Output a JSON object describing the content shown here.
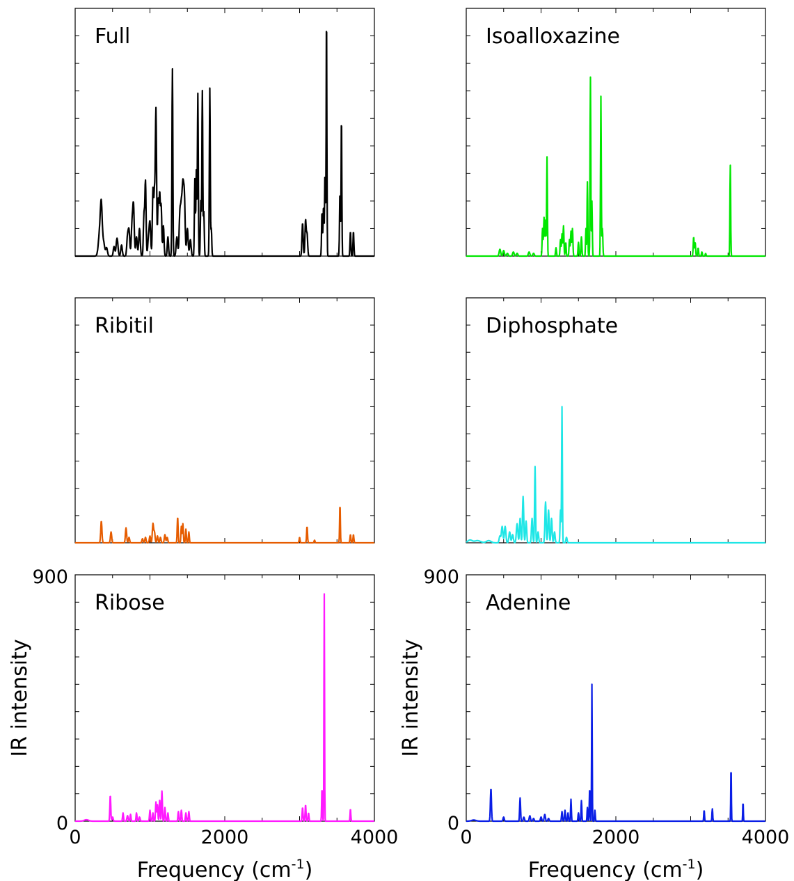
{
  "chart_data": [
    {
      "type": "line",
      "label": "Full",
      "color": "#000000",
      "xlim": [
        0,
        4000
      ],
      "ylim": [
        0,
        900
      ],
      "peaks": [
        [
          330,
          18,
          90
        ],
        [
          350,
          12,
          150
        ],
        [
          380,
          14,
          50
        ],
        [
          420,
          12,
          30
        ],
        [
          520,
          10,
          35
        ],
        [
          560,
          12,
          65
        ],
        [
          620,
          10,
          40
        ],
        [
          700,
          10,
          70
        ],
        [
          720,
          10,
          90
        ],
        [
          760,
          10,
          110
        ],
        [
          780,
          10,
          180
        ],
        [
          820,
          10,
          70
        ],
        [
          860,
          10,
          100
        ],
        [
          920,
          8,
          150
        ],
        [
          940,
          8,
          270
        ],
        [
          980,
          10,
          60
        ],
        [
          1000,
          10,
          120
        ],
        [
          1040,
          8,
          240
        ],
        [
          1060,
          8,
          220
        ],
        [
          1080,
          8,
          530
        ],
        [
          1110,
          8,
          200
        ],
        [
          1130,
          8,
          220
        ],
        [
          1150,
          8,
          180
        ],
        [
          1180,
          8,
          110
        ],
        [
          1240,
          8,
          70
        ],
        [
          1300,
          6,
          680
        ],
        [
          1360,
          10,
          70
        ],
        [
          1400,
          10,
          150
        ],
        [
          1420,
          10,
          160
        ],
        [
          1440,
          10,
          230
        ],
        [
          1460,
          10,
          210
        ],
        [
          1500,
          10,
          100
        ],
        [
          1540,
          10,
          60
        ],
        [
          1600,
          6,
          280
        ],
        [
          1620,
          6,
          310
        ],
        [
          1640,
          6,
          590
        ],
        [
          1680,
          6,
          200
        ],
        [
          1700,
          6,
          600
        ],
        [
          1720,
          6,
          160
        ],
        [
          1800,
          6,
          610
        ],
        [
          1820,
          6,
          100
        ],
        [
          3040,
          8,
          120
        ],
        [
          3080,
          8,
          130
        ],
        [
          3100,
          8,
          80
        ],
        [
          3300,
          6,
          160
        ],
        [
          3320,
          6,
          180
        ],
        [
          3340,
          6,
          300
        ],
        [
          3360,
          5,
          880
        ],
        [
          3540,
          6,
          230
        ],
        [
          3560,
          5,
          510
        ],
        [
          3680,
          6,
          90
        ],
        [
          3720,
          6,
          90
        ]
      ]
    },
    {
      "type": "line",
      "label": "Isoalloxazine",
      "color": "#00e600",
      "xlim": [
        0,
        4000
      ],
      "ylim": [
        0,
        900
      ],
      "peaks": [
        [
          450,
          10,
          25
        ],
        [
          500,
          10,
          20
        ],
        [
          550,
          10,
          10
        ],
        [
          630,
          10,
          15
        ],
        [
          680,
          10,
          10
        ],
        [
          840,
          10,
          15
        ],
        [
          900,
          10,
          10
        ],
        [
          1020,
          6,
          100
        ],
        [
          1040,
          6,
          140
        ],
        [
          1060,
          6,
          130
        ],
        [
          1080,
          5,
          360
        ],
        [
          1200,
          6,
          30
        ],
        [
          1260,
          6,
          60
        ],
        [
          1280,
          6,
          80
        ],
        [
          1300,
          6,
          110
        ],
        [
          1330,
          6,
          50
        ],
        [
          1380,
          6,
          60
        ],
        [
          1400,
          6,
          90
        ],
        [
          1420,
          6,
          100
        ],
        [
          1500,
          6,
          50
        ],
        [
          1540,
          6,
          70
        ],
        [
          1600,
          5,
          100
        ],
        [
          1620,
          5,
          270
        ],
        [
          1660,
          5,
          650
        ],
        [
          1680,
          5,
          200
        ],
        [
          1800,
          5,
          580
        ],
        [
          1820,
          6,
          100
        ],
        [
          3040,
          6,
          70
        ],
        [
          3060,
          6,
          50
        ],
        [
          3100,
          6,
          30
        ],
        [
          3150,
          6,
          15
        ],
        [
          3200,
          6,
          10
        ],
        [
          3530,
          5,
          330
        ]
      ]
    },
    {
      "type": "line",
      "label": "Ribitil",
      "color": "#e65c00",
      "xlim": [
        0,
        4000
      ],
      "ylim": [
        0,
        900
      ],
      "peaks": [
        [
          350,
          8,
          80
        ],
        [
          480,
          8,
          40
        ],
        [
          680,
          8,
          55
        ],
        [
          720,
          8,
          20
        ],
        [
          900,
          8,
          15
        ],
        [
          940,
          8,
          20
        ],
        [
          1000,
          8,
          25
        ],
        [
          1040,
          8,
          70
        ],
        [
          1060,
          8,
          40
        ],
        [
          1100,
          8,
          25
        ],
        [
          1140,
          8,
          20
        ],
        [
          1200,
          8,
          30
        ],
        [
          1230,
          8,
          20
        ],
        [
          1370,
          6,
          95
        ],
        [
          1420,
          6,
          60
        ],
        [
          1440,
          6,
          70
        ],
        [
          1480,
          6,
          50
        ],
        [
          1520,
          6,
          40
        ],
        [
          3000,
          6,
          20
        ],
        [
          3100,
          6,
          60
        ],
        [
          3200,
          6,
          10
        ],
        [
          3540,
          5,
          140
        ],
        [
          3680,
          6,
          30
        ],
        [
          3720,
          6,
          30
        ]
      ]
    },
    {
      "type": "line",
      "label": "Diphosphate",
      "color": "#1ee6e6",
      "xlim": [
        0,
        4000
      ],
      "ylim": [
        0,
        900
      ],
      "peaks": [
        [
          50,
          30,
          10
        ],
        [
          150,
          40,
          8
        ],
        [
          300,
          30,
          8
        ],
        [
          450,
          10,
          25
        ],
        [
          480,
          10,
          60
        ],
        [
          520,
          10,
          60
        ],
        [
          580,
          10,
          40
        ],
        [
          620,
          10,
          30
        ],
        [
          680,
          10,
          70
        ],
        [
          720,
          8,
          90
        ],
        [
          760,
          8,
          170
        ],
        [
          800,
          8,
          80
        ],
        [
          880,
          8,
          90
        ],
        [
          920,
          6,
          280
        ],
        [
          960,
          8,
          40
        ],
        [
          1060,
          8,
          150
        ],
        [
          1100,
          8,
          120
        ],
        [
          1140,
          8,
          90
        ],
        [
          1180,
          8,
          40
        ],
        [
          1260,
          6,
          120
        ],
        [
          1280,
          5,
          500
        ],
        [
          1340,
          8,
          20
        ]
      ]
    },
    {
      "type": "line",
      "label": "Ribose",
      "color": "#ff1aff",
      "xlim": [
        0,
        4000
      ],
      "ylim": [
        0,
        900
      ],
      "peaks": [
        [
          150,
          30,
          5
        ],
        [
          470,
          6,
          95
        ],
        [
          500,
          8,
          15
        ],
        [
          640,
          6,
          30
        ],
        [
          700,
          8,
          20
        ],
        [
          740,
          6,
          25
        ],
        [
          820,
          6,
          30
        ],
        [
          860,
          8,
          15
        ],
        [
          1000,
          6,
          40
        ],
        [
          1040,
          6,
          30
        ],
        [
          1080,
          6,
          70
        ],
        [
          1100,
          6,
          60
        ],
        [
          1130,
          6,
          80
        ],
        [
          1160,
          6,
          110
        ],
        [
          1200,
          6,
          50
        ],
        [
          1240,
          6,
          30
        ],
        [
          1380,
          6,
          35
        ],
        [
          1420,
          6,
          40
        ],
        [
          1480,
          6,
          30
        ],
        [
          1520,
          6,
          35
        ],
        [
          3040,
          6,
          50
        ],
        [
          3080,
          6,
          60
        ],
        [
          3120,
          6,
          30
        ],
        [
          3300,
          5,
          120
        ],
        [
          3330,
          4,
          830
        ],
        [
          3680,
          5,
          45
        ]
      ]
    },
    {
      "type": "line",
      "label": "Adenine",
      "color": "#0a1ee6",
      "xlim": [
        0,
        4000
      ],
      "ylim": [
        0,
        900
      ],
      "peaks": [
        [
          100,
          30,
          4
        ],
        [
          330,
          7,
          120
        ],
        [
          500,
          8,
          15
        ],
        [
          720,
          6,
          85
        ],
        [
          770,
          8,
          15
        ],
        [
          850,
          8,
          20
        ],
        [
          900,
          8,
          10
        ],
        [
          1000,
          8,
          15
        ],
        [
          1050,
          8,
          25
        ],
        [
          1100,
          8,
          10
        ],
        [
          1280,
          6,
          35
        ],
        [
          1320,
          6,
          40
        ],
        [
          1360,
          6,
          30
        ],
        [
          1400,
          5,
          80
        ],
        [
          1500,
          6,
          30
        ],
        [
          1540,
          5,
          75
        ],
        [
          1620,
          5,
          50
        ],
        [
          1650,
          5,
          120
        ],
        [
          1680,
          4,
          500
        ],
        [
          1720,
          5,
          40
        ],
        [
          3180,
          5,
          40
        ],
        [
          3290,
          5,
          45
        ],
        [
          3540,
          4,
          200
        ],
        [
          3700,
          4,
          70
        ]
      ]
    }
  ],
  "axes": {
    "x_ticks": [
      "0",
      "2000",
      "4000"
    ],
    "y_ticks": [
      "0",
      "900"
    ],
    "xlabel_main": "Frequency (cm",
    "xlabel_sup": "-1",
    "xlabel_end": ")",
    "ylabel": "IR intensity"
  }
}
